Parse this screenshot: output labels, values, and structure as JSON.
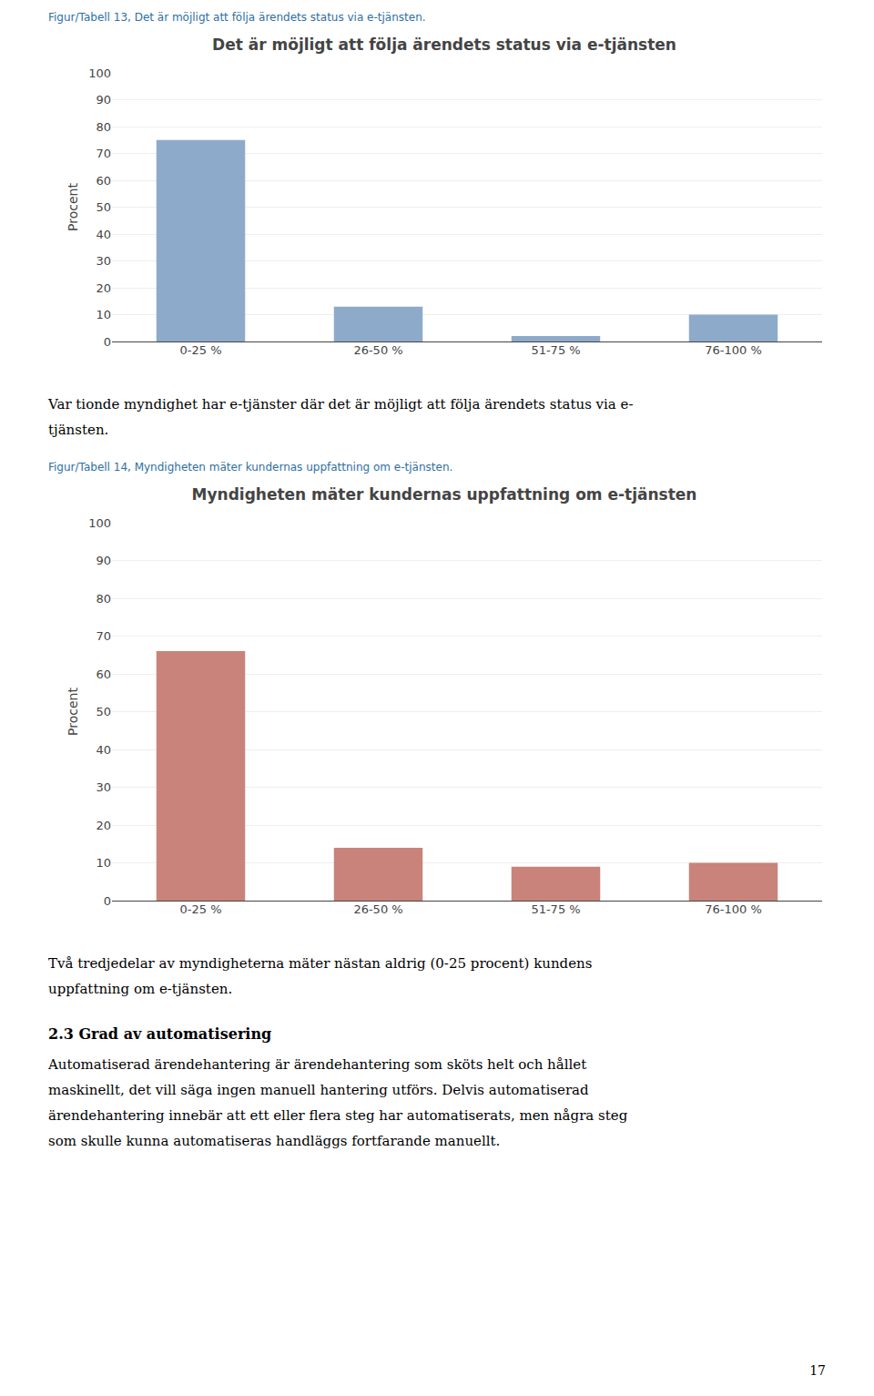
{
  "chart_data": [
    {
      "type": "bar",
      "title": "Det är möjligt att följa ärendets status via e-tjänsten",
      "categories": [
        "0-25 %",
        "26-50 %",
        "51-75 %",
        "76-100 %"
      ],
      "values": [
        75,
        13,
        2,
        10
      ],
      "color": "#8eaacb",
      "ylabel": "Procent",
      "ylim": [
        0,
        100
      ],
      "yticks": [
        0,
        10,
        20,
        30,
        40,
        50,
        60,
        70,
        80,
        90,
        100
      ],
      "grid": true
    },
    {
      "type": "bar",
      "title": "Myndigheten mäter kundernas uppfattning om e-tjänsten",
      "categories": [
        "0-25 %",
        "26-50 %",
        "51-75 %",
        "76-100 %"
      ],
      "values": [
        66,
        14,
        9,
        10
      ],
      "color": "#c9837a",
      "ylabel": "Procent",
      "ylim": [
        0,
        100
      ],
      "yticks": [
        0,
        10,
        20,
        30,
        40,
        50,
        60,
        70,
        80,
        90,
        100
      ],
      "grid": true
    }
  ],
  "page": {
    "captions": [
      "Figur/Tabell 13, Det är möjligt att följa ärendets status via e-tjänsten.",
      "Figur/Tabell 14, Myndigheten mäter kundernas uppfattning om e-tjänsten."
    ],
    "paragraphs": [
      [
        "Var tionde myndighet har e-tjänster där det är möjligt att följa ärendets status via e-",
        "tjänsten."
      ],
      [
        "Två tredjedelar av myndigheterna mäter nästan aldrig (0-25 procent) kundens",
        "uppfattning om e-tjänsten."
      ]
    ],
    "heading": "2.3 Grad av automatisering",
    "section_text": [
      "Automatiserad ärendehantering är ärendehantering som sköts helt och hållet",
      "maskinellt, det vill säga ingen manuell hantering utförs. Delvis automatiserad",
      "ärendehantering innebär att ett eller flera steg har automatiserats, men några steg",
      "som skulle kunna automatiseras handläggs fortfarande manuellt."
    ],
    "page_number": "17"
  }
}
